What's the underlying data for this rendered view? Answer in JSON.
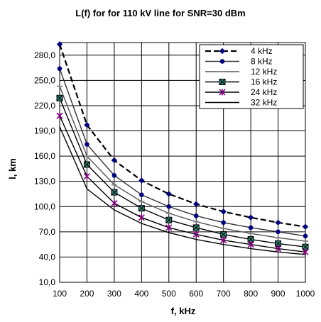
{
  "chart_data": {
    "type": "line",
    "title": "L(f) for for 110 kV line for SNR=30 dBm",
    "xlabel": "f, kHz",
    "ylabel": "l, km",
    "x": [
      100,
      200,
      300,
      400,
      500,
      600,
      700,
      800,
      900,
      1000
    ],
    "xlim": [
      100,
      1000
    ],
    "ylim": [
      10,
      295
    ],
    "yticks": [
      10,
      40,
      70,
      100,
      130,
      160,
      190,
      220,
      250,
      280
    ],
    "ytick_labels": [
      "10,0",
      "40,0",
      "70,0",
      "100,0",
      "130,0",
      "160,0",
      "190,0",
      "220,0",
      "250,0",
      "280,0"
    ],
    "xtick_labels": [
      "100",
      "200",
      "300",
      "400",
      "500",
      "600",
      "700",
      "800",
      "900",
      "1000"
    ],
    "grid": true,
    "legend_position": "top-right",
    "series": [
      {
        "name": "4 kHz",
        "values": [
          293,
          197,
          155,
          131,
          115,
          103,
          94,
          87,
          81,
          76
        ],
        "style": "dashed",
        "marker": "diamond",
        "color": "#000000",
        "marker_color": "#000080"
      },
      {
        "name": "8 kHz",
        "values": [
          264,
          174,
          137,
          114,
          100,
          89,
          81,
          75,
          70,
          65
        ],
        "style": "solid",
        "marker": "circle",
        "color": "#333333",
        "marker_color": "#000080"
      },
      {
        "name": "12 kHz",
        "values": [
          243,
          160,
          126,
          106,
          92,
          82,
          74,
          68,
          63,
          59
        ],
        "style": "solid",
        "marker": "dash",
        "color": "#555555",
        "marker_color": "#888888"
      },
      {
        "name": "16 kHz",
        "values": [
          229,
          150,
          117,
          98,
          84,
          75,
          67,
          61,
          56,
          52
        ],
        "style": "solid",
        "marker": "square-x",
        "color": "#000000",
        "marker_color": "#2e8b7a"
      },
      {
        "name": "24 kHz",
        "values": [
          208,
          136,
          104,
          87,
          75,
          67,
          60,
          55,
          50,
          46
        ],
        "style": "solid",
        "marker": "star",
        "color": "#000000",
        "marker_color": "#800080"
      },
      {
        "name": "32 kHz",
        "values": [
          195,
          121,
          96,
          80,
          69,
          61,
          55,
          50,
          46,
          43
        ],
        "style": "solid",
        "marker": "none",
        "color": "#000000",
        "marker_color": "#000000"
      }
    ]
  }
}
